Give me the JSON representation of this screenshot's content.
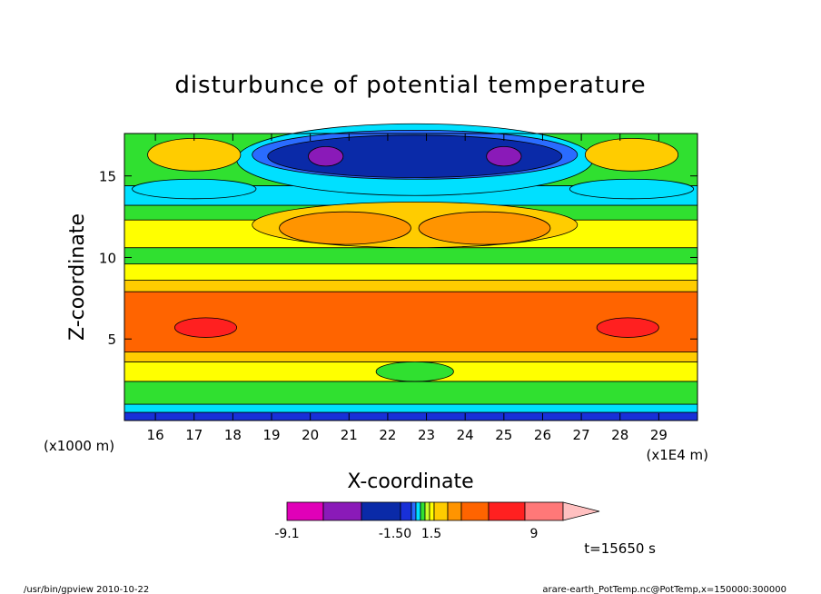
{
  "chart_data": {
    "type": "heatmap",
    "title": "disturbunce of potential temperature",
    "xlabel": "X-coordinate",
    "ylabel": "Z-coordinate",
    "x_unit_label": "(x1E4 m)",
    "z_unit_label": "(x1000 m)",
    "xlim": [
      15.2,
      30
    ],
    "ylim": [
      0,
      17.6
    ],
    "x_ticks": [
      16,
      17,
      18,
      19,
      20,
      21,
      22,
      23,
      24,
      25,
      26,
      27,
      28,
      29
    ],
    "y_ticks": [
      5,
      10,
      15
    ],
    "colorbar": {
      "tick_labels": [
        "-9.1",
        "-1.50",
        "1.5",
        "9"
      ],
      "colors": [
        "#e000b8",
        "#8a1ab8",
        "#0a2aa8",
        "#1830d8",
        "#2a6cff",
        "#00e0ff",
        "#30e030",
        "#c8ff28",
        "#ffff00",
        "#ffcc00",
        "#ff9400",
        "#ff6400",
        "#ff2020",
        "#ff7878",
        "#ffc0c0"
      ]
    },
    "time_label": "t=15650 s",
    "bands": [
      {
        "z": [
          0.0,
          0.5
        ],
        "color": "#1830d8"
      },
      {
        "z": [
          0.5,
          1.0
        ],
        "color": "#00e0ff"
      },
      {
        "z": [
          1.0,
          2.4
        ],
        "color": "#30e030"
      },
      {
        "z": [
          2.4,
          3.6
        ],
        "color": "#ffff00"
      },
      {
        "z": [
          3.6,
          4.2
        ],
        "color": "#ffcc00"
      },
      {
        "z": [
          4.2,
          7.9
        ],
        "color": "#ff6400"
      },
      {
        "z": [
          7.9,
          8.6
        ],
        "color": "#ffcc00"
      },
      {
        "z": [
          8.6,
          9.6
        ],
        "color": "#ffff00"
      },
      {
        "z": [
          9.6,
          10.6
        ],
        "color": "#30e030"
      },
      {
        "z": [
          10.6,
          12.3
        ],
        "color": "#ffff00"
      },
      {
        "z": [
          12.3,
          13.2
        ],
        "color": "#30e030"
      },
      {
        "z": [
          13.2,
          14.4
        ],
        "color": "#00e0ff"
      },
      {
        "z": [
          14.4,
          17.6
        ],
        "color": "#30e030"
      }
    ],
    "features": [
      {
        "kind": "ellipse",
        "cx": 22.7,
        "cz": 16.0,
        "rx": 4.6,
        "rz": 2.2,
        "color": "#00e0ff"
      },
      {
        "kind": "ellipse",
        "cx": 22.7,
        "cz": 16.3,
        "rx": 4.2,
        "rz": 1.5,
        "color": "#2a6cff"
      },
      {
        "kind": "ellipse",
        "cx": 22.7,
        "cz": 16.2,
        "rx": 3.8,
        "rz": 1.3,
        "color": "#0a2aa8"
      },
      {
        "kind": "ellipse",
        "cx": 20.4,
        "cz": 16.2,
        "rx": 0.45,
        "rz": 0.6,
        "color": "#8a1ab8"
      },
      {
        "kind": "ellipse",
        "cx": 25.0,
        "cz": 16.2,
        "rx": 0.45,
        "rz": 0.6,
        "color": "#8a1ab8"
      },
      {
        "kind": "ellipse",
        "cx": 17.0,
        "cz": 16.3,
        "rx": 1.2,
        "rz": 1.0,
        "color": "#ffcc00"
      },
      {
        "kind": "ellipse",
        "cx": 28.3,
        "cz": 16.3,
        "rx": 1.2,
        "rz": 1.0,
        "color": "#ffcc00"
      },
      {
        "kind": "ellipse",
        "cx": 17.0,
        "cz": 14.2,
        "rx": 1.6,
        "rz": 0.6,
        "color": "#00e0ff"
      },
      {
        "kind": "ellipse",
        "cx": 28.3,
        "cz": 14.2,
        "rx": 1.6,
        "rz": 0.6,
        "color": "#00e0ff"
      },
      {
        "kind": "ellipse",
        "cx": 22.7,
        "cz": 12.0,
        "rx": 4.2,
        "rz": 1.4,
        "color": "#ffcc00"
      },
      {
        "kind": "ellipse",
        "cx": 20.9,
        "cz": 11.8,
        "rx": 1.7,
        "rz": 1.0,
        "color": "#ff9400"
      },
      {
        "kind": "ellipse",
        "cx": 24.5,
        "cz": 11.8,
        "rx": 1.7,
        "rz": 1.0,
        "color": "#ff9400"
      },
      {
        "kind": "ellipse",
        "cx": 17.3,
        "cz": 5.7,
        "rx": 0.8,
        "rz": 0.6,
        "color": "#ff2020"
      },
      {
        "kind": "ellipse",
        "cx": 28.2,
        "cz": 5.7,
        "rx": 0.8,
        "rz": 0.6,
        "color": "#ff2020"
      },
      {
        "kind": "ellipse",
        "cx": 22.7,
        "cz": 3.0,
        "rx": 1.0,
        "rz": 0.6,
        "color": "#30e030"
      }
    ]
  },
  "footer": {
    "left": "/usr/bin/gpview   2010-10-22",
    "right": "arare-earth_PotTemp.nc@PotTemp,x=150000:300000"
  }
}
